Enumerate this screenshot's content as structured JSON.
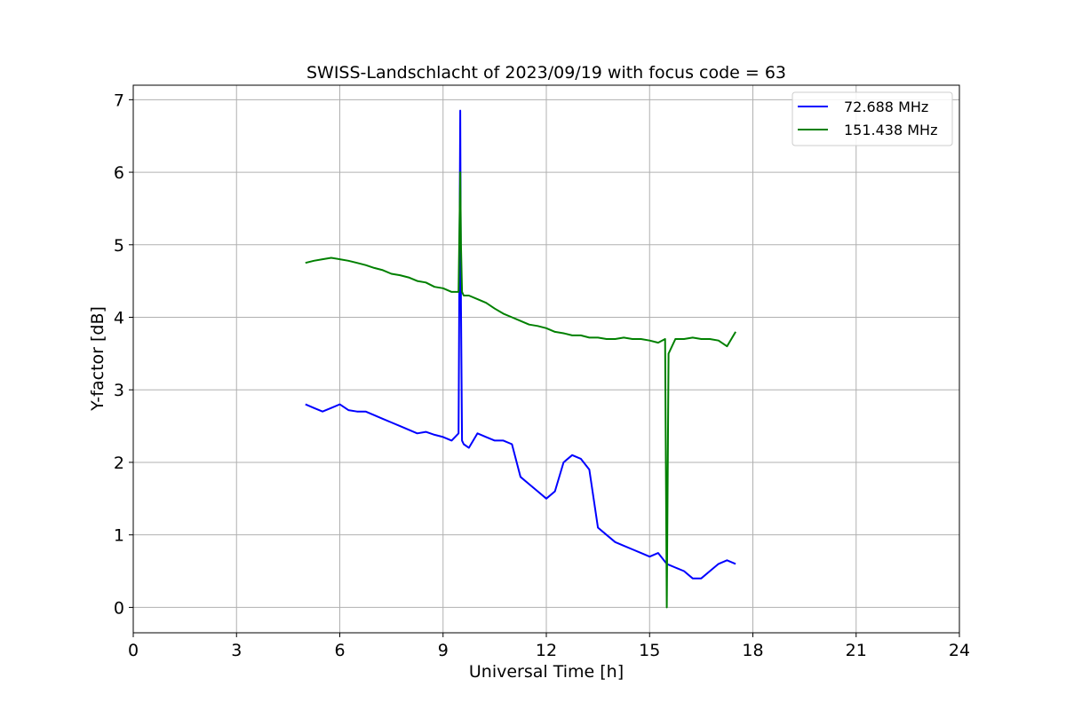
{
  "chart_data": {
    "type": "line",
    "title": "SWISS-Landschlacht of 2023/09/19 with focus code = 63",
    "xlabel": "Universal Time [h]",
    "ylabel": "Y-factor [dB]",
    "xlim": [
      0,
      24
    ],
    "ylim": [
      -0.35,
      7.2
    ],
    "xticks": [
      0,
      3,
      6,
      9,
      12,
      15,
      18,
      21,
      24
    ],
    "yticks": [
      0,
      1,
      2,
      3,
      4,
      5,
      6,
      7
    ],
    "grid": true,
    "legend_position": "top-right",
    "series": [
      {
        "name": "72.688 MHz",
        "color": "#0000ff",
        "x": [
          5.0,
          5.25,
          5.5,
          5.75,
          6.0,
          6.25,
          6.5,
          6.75,
          7.0,
          7.25,
          7.5,
          7.75,
          8.0,
          8.25,
          8.5,
          8.75,
          9.0,
          9.25,
          9.45,
          9.5,
          9.52,
          9.55,
          9.6,
          9.75,
          10.0,
          10.25,
          10.5,
          10.75,
          11.0,
          11.25,
          11.5,
          11.75,
          12.0,
          12.25,
          12.5,
          12.75,
          13.0,
          13.25,
          13.5,
          13.75,
          14.0,
          14.25,
          14.5,
          14.75,
          15.0,
          15.25,
          15.5,
          15.75,
          16.0,
          16.25,
          16.5,
          16.75,
          17.0,
          17.25,
          17.5
        ],
        "y": [
          2.8,
          2.75,
          2.7,
          2.75,
          2.8,
          2.72,
          2.7,
          2.7,
          2.65,
          2.6,
          2.55,
          2.5,
          2.45,
          2.4,
          2.42,
          2.38,
          2.35,
          2.3,
          2.4,
          6.85,
          4.2,
          2.3,
          2.25,
          2.2,
          2.4,
          2.35,
          2.3,
          2.3,
          2.25,
          1.8,
          1.7,
          1.6,
          1.5,
          1.6,
          2.0,
          2.1,
          2.05,
          1.9,
          1.1,
          1.0,
          0.9,
          0.85,
          0.8,
          0.75,
          0.7,
          0.75,
          0.6,
          0.55,
          0.5,
          0.4,
          0.4,
          0.5,
          0.6,
          0.65,
          0.6
        ]
      },
      {
        "name": "151.438 MHz",
        "color": "#008000",
        "x": [
          5.0,
          5.25,
          5.5,
          5.75,
          6.0,
          6.25,
          6.5,
          6.75,
          7.0,
          7.25,
          7.5,
          7.75,
          8.0,
          8.25,
          8.5,
          8.75,
          9.0,
          9.25,
          9.45,
          9.5,
          9.52,
          9.55,
          9.6,
          9.75,
          10.0,
          10.25,
          10.5,
          10.75,
          11.0,
          11.25,
          11.5,
          11.75,
          12.0,
          12.25,
          12.5,
          12.75,
          13.0,
          13.25,
          13.5,
          13.75,
          14.0,
          14.25,
          14.5,
          14.75,
          15.0,
          15.25,
          15.45,
          15.5,
          15.55,
          15.75,
          16.0,
          16.25,
          16.5,
          16.75,
          17.0,
          17.25,
          17.5
        ],
        "y": [
          4.75,
          4.78,
          4.8,
          4.82,
          4.8,
          4.78,
          4.75,
          4.72,
          4.68,
          4.65,
          4.6,
          4.58,
          4.55,
          4.5,
          4.48,
          4.42,
          4.4,
          4.35,
          4.35,
          6.0,
          5.0,
          4.35,
          4.3,
          4.3,
          4.25,
          4.2,
          4.12,
          4.05,
          4.0,
          3.95,
          3.9,
          3.88,
          3.85,
          3.8,
          3.78,
          3.75,
          3.75,
          3.72,
          3.72,
          3.7,
          3.7,
          3.72,
          3.7,
          3.7,
          3.68,
          3.65,
          3.7,
          0.0,
          3.5,
          3.7,
          3.7,
          3.72,
          3.7,
          3.7,
          3.68,
          3.6,
          3.8
        ]
      }
    ]
  }
}
